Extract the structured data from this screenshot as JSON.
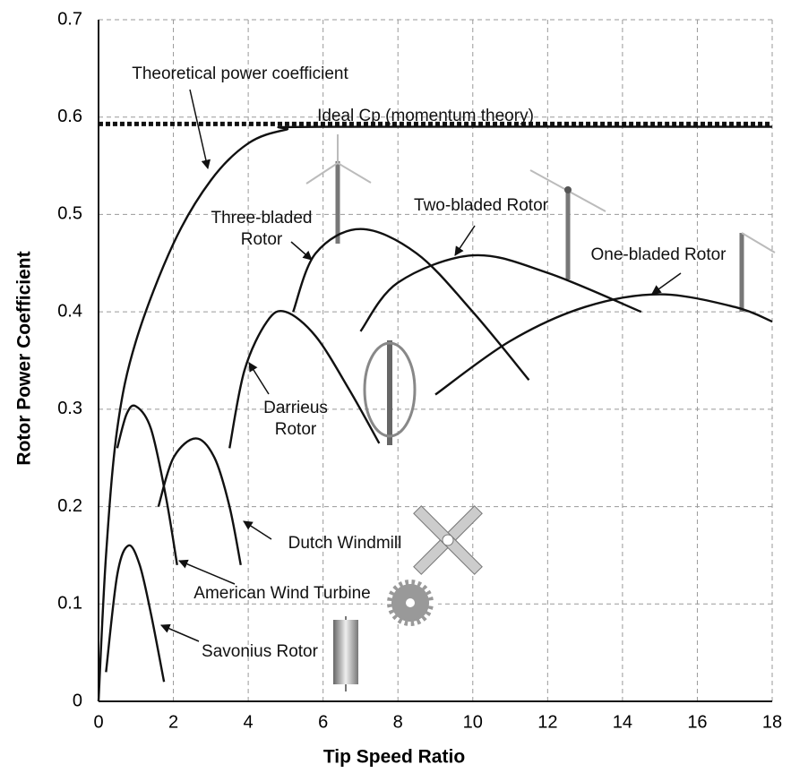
{
  "chart_data": {
    "type": "line",
    "x_label": "Tip Speed Ratio",
    "y_label": "Rotor Power Coefficient",
    "xlim": [
      0,
      18
    ],
    "ylim": [
      0,
      0.7
    ],
    "xticks": [
      0,
      2,
      4,
      6,
      8,
      10,
      12,
      14,
      16,
      18
    ],
    "yticks": [
      0,
      0.1,
      0.2,
      0.3,
      0.4,
      0.5,
      0.6,
      0.7
    ],
    "grid": true,
    "series": [
      {
        "name": "Theoretical power coefficient",
        "color": "#111111",
        "x": [
          0,
          0.2,
          0.5,
          1,
          2,
          3,
          4,
          5,
          6,
          18
        ],
        "values": [
          0,
          0.15,
          0.28,
          0.37,
          0.47,
          0.535,
          0.573,
          0.587,
          0.59,
          0.59
        ]
      },
      {
        "name": "Ideal Cp (momentum theory)",
        "color": "#111111",
        "dashed": true,
        "x": [
          0,
          18
        ],
        "values": [
          0.593,
          0.593
        ]
      },
      {
        "name": "Savonius Rotor",
        "color": "#111111",
        "x": [
          0.2,
          0.5,
          0.8,
          1.1,
          1.4,
          1.75
        ],
        "values": [
          0.03,
          0.13,
          0.16,
          0.14,
          0.09,
          0.02
        ]
      },
      {
        "name": "American Wind Turbine",
        "color": "#111111",
        "x": [
          0.5,
          0.75,
          1,
          1.4,
          1.8,
          2.1
        ],
        "values": [
          0.26,
          0.295,
          0.303,
          0.28,
          0.21,
          0.14
        ]
      },
      {
        "name": "Dutch Windmill",
        "color": "#111111",
        "x": [
          1.6,
          2,
          2.6,
          3.1,
          3.5,
          3.8
        ],
        "values": [
          0.2,
          0.25,
          0.27,
          0.25,
          0.2,
          0.14
        ]
      },
      {
        "name": "Darrieus Rotor",
        "color": "#111111",
        "x": [
          3.5,
          3.9,
          4.5,
          5,
          5.8,
          6.7,
          7.5
        ],
        "values": [
          0.26,
          0.34,
          0.39,
          0.4,
          0.375,
          0.32,
          0.265
        ]
      },
      {
        "name": "Three-bladed Rotor",
        "color": "#111111",
        "x": [
          5.2,
          5.8,
          7,
          8.5,
          10,
          11.5
        ],
        "values": [
          0.4,
          0.46,
          0.485,
          0.46,
          0.4,
          0.33
        ]
      },
      {
        "name": "Two-bladed Rotor",
        "color": "#111111",
        "x": [
          7,
          8,
          10,
          12,
          14.5
        ],
        "values": [
          0.38,
          0.43,
          0.458,
          0.44,
          0.4
        ]
      },
      {
        "name": "One-bladed Rotor",
        "color": "#111111",
        "x": [
          9,
          11,
          13,
          15,
          17,
          18
        ],
        "values": [
          0.315,
          0.37,
          0.405,
          0.418,
          0.405,
          0.39
        ]
      }
    ]
  }
}
